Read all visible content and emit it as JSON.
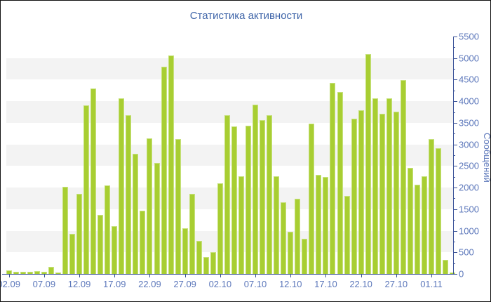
{
  "title": "Статистика активности",
  "chart_data": {
    "type": "bar",
    "title": "Статистика активности",
    "xlabel": "",
    "ylabel": "Сообщений",
    "ylim": [
      0,
      5500
    ],
    "ytick_step": 500,
    "yminor_step": 250,
    "xtick_every": 5,
    "grid": "striped-horizontal-bands",
    "legend": "none",
    "stripe_bands": [
      [
        500,
        1000
      ],
      [
        1500,
        2000
      ],
      [
        2500,
        3000
      ],
      [
        3500,
        4000
      ],
      [
        4500,
        5000
      ]
    ],
    "yticks": [
      "0",
      "500",
      "1000",
      "1500",
      "2000",
      "2500",
      "3000",
      "3500",
      "4000",
      "4500",
      "5000",
      "5500"
    ],
    "xticks_visible": [
      "02.09",
      "07.09",
      "12.09",
      "17.09",
      "22.09",
      "27.09",
      "02.10",
      "07.10",
      "12.10",
      "17.10",
      "22.10",
      "27.10",
      "01.11"
    ],
    "x": [
      "02.09",
      "03.09",
      "04.09",
      "05.09",
      "06.09",
      "07.09",
      "08.09",
      "09.09",
      "10.09",
      "11.09",
      "12.09",
      "13.09",
      "14.09",
      "15.09",
      "16.09",
      "17.09",
      "18.09",
      "19.09",
      "20.09",
      "21.09",
      "22.09",
      "23.09",
      "24.09",
      "25.09",
      "26.09",
      "27.09",
      "28.09",
      "29.09",
      "30.09",
      "01.10",
      "02.10",
      "03.10",
      "04.10",
      "05.10",
      "06.10",
      "07.10",
      "08.10",
      "09.10",
      "10.10",
      "11.10",
      "12.10",
      "13.10",
      "14.10",
      "15.10",
      "16.10",
      "17.10",
      "18.10",
      "19.10",
      "20.10",
      "21.10",
      "22.10",
      "23.10",
      "24.10",
      "25.10",
      "26.10",
      "27.10",
      "28.10",
      "29.10",
      "30.10",
      "31.10",
      "01.11",
      "02.11",
      "03.11",
      "04.11"
    ],
    "values": [
      80,
      50,
      45,
      50,
      60,
      50,
      160,
      30,
      2020,
      930,
      1850,
      3900,
      4290,
      1370,
      2050,
      1100,
      4060,
      3670,
      2790,
      1460,
      3140,
      2575,
      4800,
      5060,
      3130,
      1060,
      1855,
      760,
      385,
      505,
      2100,
      3670,
      3410,
      2260,
      3440,
      3915,
      3560,
      3680,
      2260,
      1665,
      970,
      1745,
      810,
      3480,
      2300,
      2250,
      4430,
      4220,
      1800,
      3600,
      3790,
      5090,
      4070,
      3715,
      4065,
      3760,
      4490,
      2460,
      2070,
      2260,
      3130,
      2910,
      320,
      30
    ],
    "colors": {
      "bar_fill": "#a8ce32",
      "bar_edge": "#c6e17c",
      "stripe": "#f3f3f3",
      "axis": "#3b5398",
      "tick_label": "#5d78bb",
      "title": "#3e64a8",
      "background": "#ffffff"
    }
  }
}
